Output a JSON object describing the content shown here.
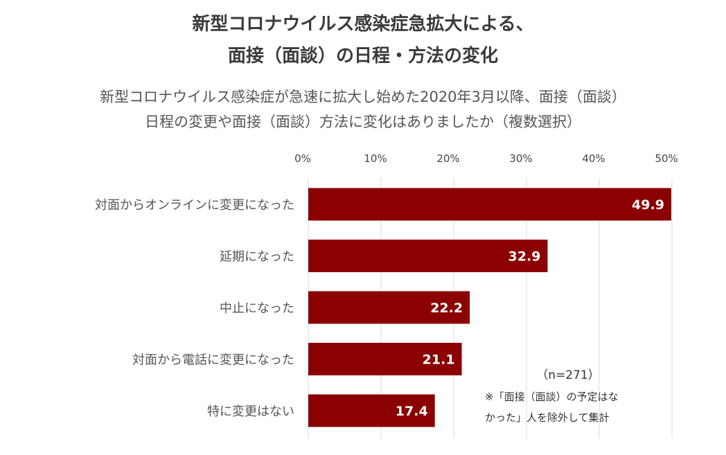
{
  "title_lines": [
    "新型コロナウイルス感染症急拡大による、",
    "面接（面談）の日程・方法の変化"
  ],
  "subtitle_lines": [
    "新型コロナウイルス感染症が急速に拡大し始めた2020年3月以降、面接（面談）",
    "日程の変更や面接（面談）方法に変化はありましたか（複数選択）"
  ],
  "notes": {
    "sample_size": "（n=271）",
    "line_1": "※「面接（面談）の予定はな",
    "line_2": "かった」人を除外して集計"
  },
  "chart_data": {
    "type": "bar",
    "orientation": "horizontal",
    "categories": [
      "対面からオンラインに変更になった",
      "延期になった",
      "中止になった",
      "対面から電話に変更になった",
      "特に変更はない"
    ],
    "values": [
      49.9,
      32.9,
      22.2,
      21.1,
      17.4
    ],
    "data_labels": [
      "49.9",
      "32.9",
      "22.2",
      "21.1",
      "17.4"
    ],
    "xlim": [
      0,
      50
    ],
    "ticks": [
      0,
      10,
      20,
      30,
      40,
      50
    ],
    "tick_labels": [
      "0%",
      "10%",
      "20%",
      "30%",
      "40%",
      "50%"
    ],
    "axis_position": "top",
    "grid": true,
    "bar_color": "#8b0000",
    "grid_color": "#d9d9d9",
    "label_color": "#ffffff"
  }
}
